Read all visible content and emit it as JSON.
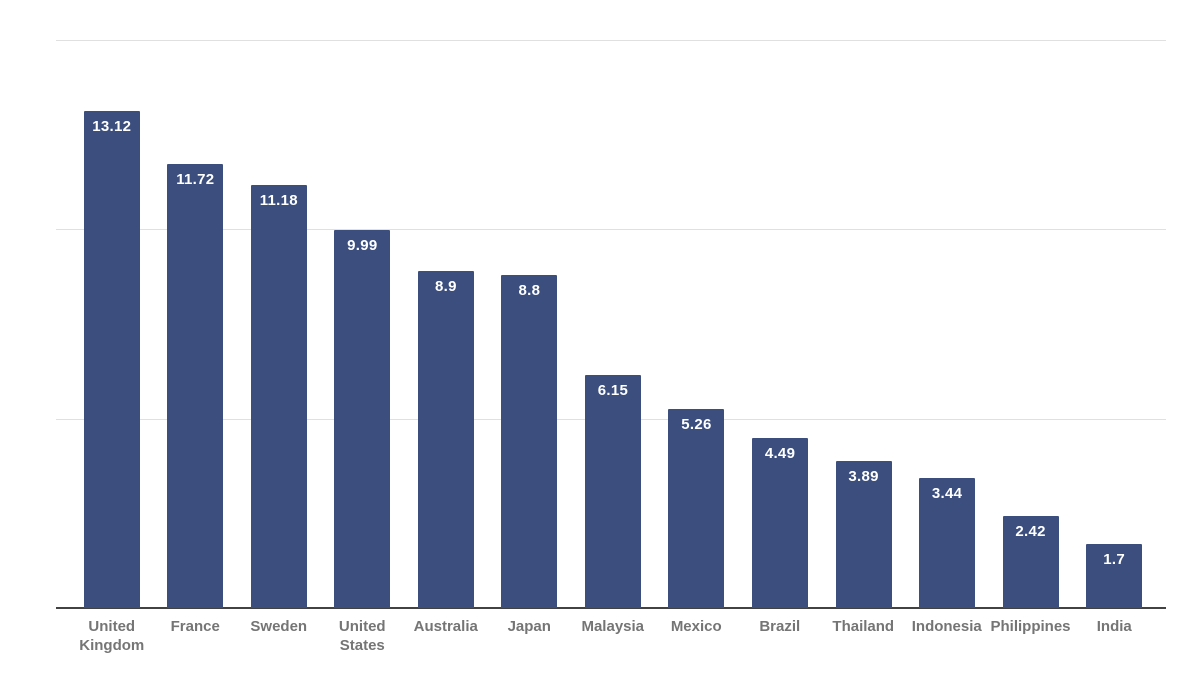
{
  "chart": {
    "colors": {
      "bar": "#3b4e7e",
      "value_label": "#ffffff",
      "axis_label": "#757575",
      "gridline": "#e0e0e0",
      "baseline": "#424242",
      "background": "#ffffff"
    }
  },
  "chart_data": {
    "type": "bar",
    "title": "",
    "xlabel": "",
    "ylabel": "",
    "categories": [
      "United Kingdom",
      "France",
      "Sweden",
      "United States",
      "Australia",
      "Japan",
      "Malaysia",
      "Mexico",
      "Brazil",
      "Thailand",
      "Indonesia",
      "Philippines",
      "India"
    ],
    "values": [
      13.12,
      11.72,
      11.18,
      9.99,
      8.9,
      8.8,
      6.15,
      5.26,
      4.49,
      3.89,
      3.44,
      2.42,
      1.7
    ],
    "value_labels": [
      "13.12",
      "11.72",
      "11.18",
      "9.99",
      "8.9",
      "8.8",
      "6.15",
      "5.26",
      "4.49",
      "3.89",
      "3.44",
      "2.42",
      "1.7"
    ],
    "ylim": [
      0,
      15
    ],
    "gridline_values": [
      5,
      10,
      15
    ],
    "grid": true,
    "y_tick_labels_shown": false,
    "legend_position": "none",
    "value_label_position": "inside-top"
  }
}
